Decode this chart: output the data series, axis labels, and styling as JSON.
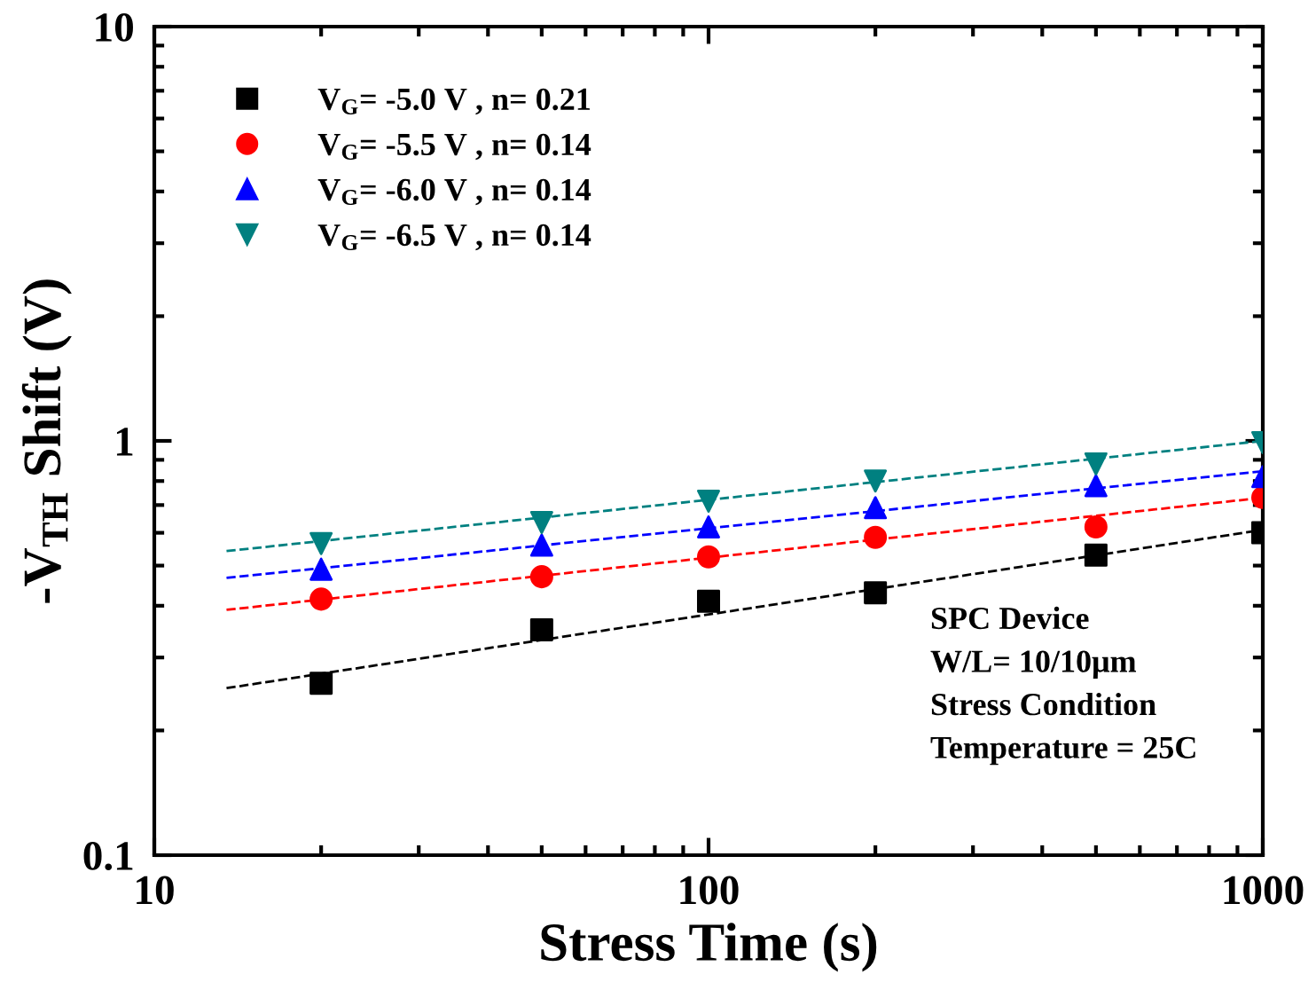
{
  "chart_data": {
    "type": "scatter",
    "xlabel": "Stress Time (s)",
    "ylabel": "-V$_{TH}$ Shift (V)",
    "log": "xy",
    "xlim": [
      10,
      1000
    ],
    "ylim": [
      0.1,
      10
    ],
    "xticks": [
      10,
      100,
      1000
    ],
    "yticks": [
      0.1,
      1,
      10
    ],
    "grid": false,
    "legend": "top left",
    "series": [
      {
        "name": "V$_{G}$= -5.0 V , n= 0.21",
        "color": "#000000",
        "marker": "square",
        "x": [
          20,
          50,
          100,
          200,
          500,
          1000
        ],
        "values": [
          0.26,
          0.35,
          0.41,
          0.43,
          0.53,
          0.6
        ]
      },
      {
        "name": "V$_{G}$= -5.5 V , n= 0.14",
        "color": "#ff0000",
        "marker": "circle",
        "x": [
          20,
          50,
          100,
          200,
          500,
          1000
        ],
        "values": [
          0.415,
          0.47,
          0.525,
          0.585,
          0.62,
          0.73
        ]
      },
      {
        "name": "V$_{G}$= -6.0 V , n= 0.14",
        "color": "#0000ff",
        "marker": "triangle",
        "x": [
          20,
          50,
          100,
          200,
          500,
          1000
        ],
        "values": [
          0.49,
          0.56,
          0.62,
          0.69,
          0.78,
          0.82
        ]
      },
      {
        "name": "V$_{G}$= -6.5 V , n= 0.14",
        "color": "#008080",
        "marker": "triangle_down",
        "x": [
          20,
          50,
          100,
          200,
          500,
          1000
        ],
        "values": [
          0.565,
          0.635,
          0.715,
          0.8,
          0.88,
          0.99
        ]
      },
      {
        "type": "line",
        "color": "#000000",
        "line_style": "dashed",
        "marker": "none",
        "x": [
          13.5,
          1000
        ],
        "values": [
          0.253,
          0.61
        ]
      },
      {
        "type": "line",
        "color": "#ff0000",
        "line_style": "dashed",
        "marker": "none",
        "x": [
          13.5,
          1000
        ],
        "values": [
          0.391,
          0.729
        ]
      },
      {
        "type": "line",
        "color": "#0000ff",
        "line_style": "dashed",
        "marker": "none",
        "x": [
          13.5,
          1000
        ],
        "values": [
          0.467,
          0.845
        ]
      },
      {
        "type": "line",
        "color": "#008080",
        "line_style": "dashed",
        "marker": "none",
        "x": [
          13.5,
          1000
        ],
        "values": [
          0.542,
          1.0
        ]
      }
    ],
    "annotations": [
      "SPC Device",
      "W/L= 10/10μm",
      "Stress Condition",
      "Temperature = 25C"
    ]
  }
}
